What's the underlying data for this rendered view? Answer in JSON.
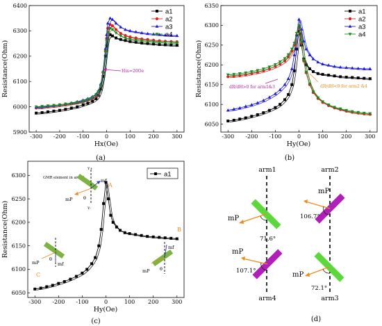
{
  "colors": {
    "a1": "#000000",
    "a2": "#e02020",
    "a3": "#1a1ad8",
    "a4": "#1e8a1e",
    "anno": "#b5239e",
    "orange": "#f08a1a",
    "green_bar": "#5cd83a",
    "magenta_bar": "#b020b8"
  },
  "chart_data": [
    {
      "panel": "(a)",
      "type": "line",
      "xlabel": "Hx(Oe)",
      "ylabel": "Resistance(Ohm)",
      "xlim": [
        -330,
        330
      ],
      "ylim": [
        5900,
        6400
      ],
      "xticks": [
        "-300",
        "-200",
        "-100",
        "0",
        "100",
        "200",
        "300"
      ],
      "yticks": [
        "5900",
        "6000",
        "6100",
        "6200",
        "6300",
        "6400"
      ],
      "legend": [
        "a1",
        "a2",
        "a3",
        "a4"
      ],
      "legend_position": "top-right",
      "annotation": "Hin=20Oe",
      "x": [
        -300,
        -275,
        -250,
        -225,
        -200,
        -175,
        -150,
        -125,
        -100,
        -80,
        -60,
        -45,
        -35,
        -25,
        -15,
        -5,
        0,
        5,
        15,
        25,
        40,
        60,
        80,
        100,
        125,
        150,
        175,
        200,
        225,
        250,
        275,
        300
      ],
      "series": [
        {
          "name": "a1",
          "marker": "square",
          "values": [
            5975,
            5977,
            5980,
            5983,
            5986,
            5990,
            5995,
            6000,
            6008,
            6014,
            6022,
            6032,
            6045,
            6070,
            6120,
            6200,
            6240,
            6270,
            6285,
            6280,
            6272,
            6266,
            6262,
            6258,
            6255,
            6252,
            6250,
            6248,
            6246,
            6245,
            6244,
            6243
          ]
        },
        {
          "name": "a2",
          "marker": "circle",
          "values": [
            5995,
            5997,
            6000,
            6002,
            6005,
            6008,
            6012,
            6016,
            6022,
            6028,
            6036,
            6045,
            6058,
            6085,
            6135,
            6220,
            6270,
            6310,
            6325,
            6320,
            6305,
            6290,
            6282,
            6276,
            6272,
            6268,
            6266,
            6263,
            6261,
            6259,
            6258,
            6257
          ]
        },
        {
          "name": "a3",
          "marker": "triangle",
          "values": [
            5998,
            6000,
            6003,
            6005,
            6008,
            6011,
            6015,
            6020,
            6026,
            6032,
            6040,
            6050,
            6063,
            6090,
            6140,
            6230,
            6285,
            6330,
            6350,
            6345,
            6330,
            6315,
            6305,
            6300,
            6296,
            6292,
            6289,
            6287,
            6285,
            6283,
            6282,
            6281
          ]
        },
        {
          "name": "a4",
          "marker": "tri-down",
          "values": [
            6000,
            6002,
            6004,
            6006,
            6008,
            6011,
            6014,
            6018,
            6024,
            6030,
            6038,
            6048,
            6060,
            6085,
            6135,
            6215,
            6260,
            6295,
            6310,
            6305,
            6292,
            6280,
            6272,
            6267,
            6264,
            6261,
            6259,
            6257,
            6256,
            6255,
            6254,
            6253
          ]
        }
      ]
    },
    {
      "panel": "(b)",
      "type": "line",
      "xlabel": "Hy(Oe)",
      "ylabel": "Resistance(Ohm)",
      "xlim": [
        -330,
        330
      ],
      "ylim": [
        6030,
        6350
      ],
      "xticks": [
        "-300",
        "-200",
        "-100",
        "0",
        "100",
        "200",
        "300"
      ],
      "yticks": [
        "6050",
        "6100",
        "6150",
        "6200",
        "6250",
        "6300",
        "6350"
      ],
      "legend": [
        "a1",
        "a2",
        "a3",
        "a4"
      ],
      "legend_position": "top-right",
      "annotations": [
        "dR/dH>0 for arm1&3",
        "dR/dH<0 for arm2 &4"
      ],
      "x": [
        -300,
        -275,
        -250,
        -225,
        -200,
        -175,
        -150,
        -125,
        -100,
        -80,
        -60,
        -45,
        -30,
        -20,
        -10,
        0,
        10,
        20,
        30,
        45,
        60,
        80,
        100,
        125,
        150,
        175,
        200,
        225,
        250,
        275,
        300
      ],
      "series": [
        {
          "name": "a1",
          "marker": "square",
          "values": [
            6058,
            6060,
            6063,
            6066,
            6070,
            6074,
            6079,
            6085,
            6092,
            6100,
            6112,
            6125,
            6150,
            6185,
            6240,
            6285,
            6250,
            6215,
            6200,
            6190,
            6183,
            6178,
            6176,
            6174,
            6172,
            6170,
            6169,
            6168,
            6167,
            6166,
            6165
          ]
        },
        {
          "name": "a2",
          "marker": "circle",
          "values": [
            6170,
            6171,
            6173,
            6175,
            6178,
            6181,
            6185,
            6190,
            6196,
            6202,
            6210,
            6220,
            6235,
            6250,
            6275,
            6295,
            6255,
            6210,
            6180,
            6150,
            6130,
            6115,
            6105,
            6097,
            6091,
            6087,
            6083,
            6080,
            6078,
            6076,
            6075
          ]
        },
        {
          "name": "a3",
          "marker": "triangle",
          "values": [
            6085,
            6088,
            6091,
            6095,
            6099,
            6104,
            6110,
            6118,
            6127,
            6137,
            6150,
            6165,
            6190,
            6225,
            6275,
            6315,
            6290,
            6260,
            6240,
            6225,
            6215,
            6207,
            6202,
            6199,
            6196,
            6194,
            6193,
            6192,
            6191,
            6190,
            6190
          ]
        },
        {
          "name": "a4",
          "marker": "tri-down",
          "values": [
            6175,
            6176,
            6178,
            6180,
            6183,
            6186,
            6190,
            6195,
            6201,
            6208,
            6216,
            6226,
            6240,
            6255,
            6280,
            6300,
            6258,
            6212,
            6182,
            6152,
            6132,
            6117,
            6107,
            6099,
            6093,
            6089,
            6085,
            6082,
            6080,
            6078,
            6077
          ]
        }
      ]
    },
    {
      "panel": "(c)",
      "type": "line",
      "xlabel": "Hy(Oe)",
      "ylabel": "Resistance(Ohm)",
      "xlim": [
        -330,
        330
      ],
      "ylim": [
        6040,
        6330
      ],
      "xticks": [
        "-300",
        "-200",
        "-100",
        "0",
        "100",
        "200",
        "300"
      ],
      "yticks": [
        "6050",
        "6100",
        "6150",
        "6200",
        "6250",
        "6300"
      ],
      "legend": [
        "a1"
      ],
      "legend_position": "top-right",
      "inset_labels": {
        "title": "GMR element in arm 1",
        "yplus": "Y+",
        "yminus": "Y-",
        "mf": "mf",
        "mp": "mP",
        "theta": "θ",
        "A": "A",
        "B": "B",
        "C": "C"
      },
      "x": [
        -300,
        -275,
        -250,
        -225,
        -200,
        -175,
        -150,
        -125,
        -100,
        -80,
        -60,
        -45,
        -30,
        -20,
        -10,
        0,
        10,
        20,
        30,
        45,
        60,
        80,
        100,
        125,
        150,
        175,
        200,
        225,
        250,
        275,
        300
      ],
      "series": [
        {
          "name": "a1",
          "marker": "square",
          "values": [
            6058,
            6060,
            6063,
            6066,
            6070,
            6074,
            6079,
            6085,
            6092,
            6100,
            6112,
            6125,
            6150,
            6185,
            6240,
            6285,
            6250,
            6215,
            6200,
            6190,
            6183,
            6178,
            6176,
            6174,
            6172,
            6170,
            6169,
            6168,
            6167,
            6166,
            6165
          ]
        }
      ]
    }
  ],
  "panel_d": {
    "label": "(d)",
    "arms": [
      "arm1",
      "arm2",
      "arm4",
      "arm3"
    ],
    "mp": "mP",
    "angles": [
      "71.6°",
      "106.7°",
      "107.1°",
      "72.1°"
    ]
  }
}
